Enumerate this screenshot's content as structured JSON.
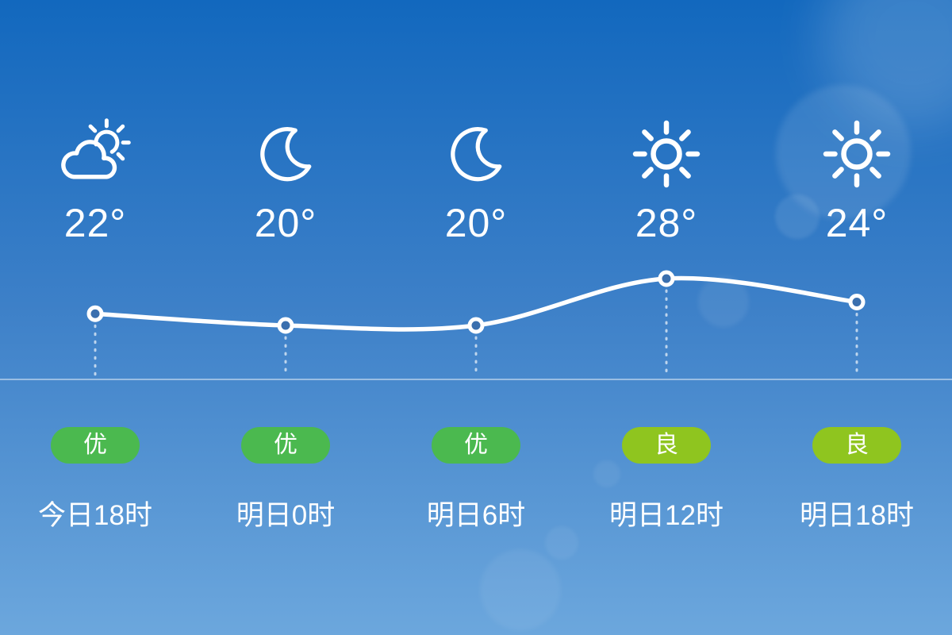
{
  "panel": {
    "name": "hourly-weather-forecast",
    "columns": [
      {
        "icon": "partly-cloudy-icon",
        "temp": "22°",
        "aqi_label": "优",
        "aqi_color": "#4bb94f",
        "time": "今日18时"
      },
      {
        "icon": "moon-icon",
        "temp": "20°",
        "aqi_label": "优",
        "aqi_color": "#4bb94f",
        "time": "明日0时"
      },
      {
        "icon": "moon-icon",
        "temp": "20°",
        "aqi_label": "优",
        "aqi_color": "#4bb94f",
        "time": "明日6时"
      },
      {
        "icon": "sun-icon",
        "temp": "28°",
        "aqi_label": "良",
        "aqi_color": "#8fc51f",
        "time": "明日12时"
      },
      {
        "icon": "sun-icon",
        "temp": "24°",
        "aqi_label": "良",
        "aqi_color": "#8fc51f",
        "time": "明日18时"
      }
    ]
  },
  "colors": {
    "background_top": "#1268be",
    "background_mid": "#3d80c8",
    "background_bottom": "#6ca7dd",
    "aqi_excellent": "#4bb94f",
    "aqi_good": "#8fc51f",
    "curve_line": "#ffffff",
    "divider": "rgba(255,255,255,0.45)"
  },
  "chart_data": {
    "type": "line",
    "x": [
      "今日18时",
      "明日0时",
      "明日6时",
      "明日12时",
      "明日18时"
    ],
    "values": [
      22,
      20,
      20,
      28,
      24
    ],
    "unit": "°",
    "series_name": "temperature",
    "line_color": "#ffffff",
    "marker": "open-circle",
    "grid": false,
    "legend": "none"
  }
}
